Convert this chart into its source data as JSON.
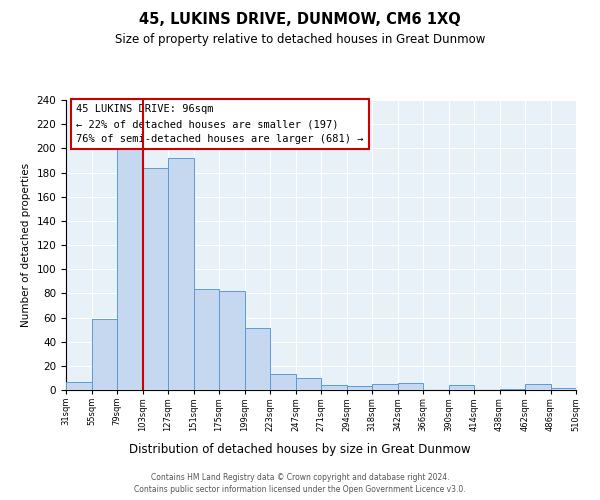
{
  "title": "45, LUKINS DRIVE, DUNMOW, CM6 1XQ",
  "subtitle": "Size of property relative to detached houses in Great Dunmow",
  "xlabel": "Distribution of detached houses by size in Great Dunmow",
  "ylabel": "Number of detached properties",
  "bar_values": [
    7,
    59,
    201,
    184,
    192,
    84,
    82,
    51,
    13,
    10,
    4,
    3,
    5,
    6,
    0,
    4,
    0,
    1,
    5,
    2
  ],
  "bin_labels": [
    "31sqm",
    "55sqm",
    "79sqm",
    "103sqm",
    "127sqm",
    "151sqm",
    "175sqm",
    "199sqm",
    "223sqm",
    "247sqm",
    "271sqm",
    "294sqm",
    "318sqm",
    "342sqm",
    "366sqm",
    "390sqm",
    "414sqm",
    "438sqm",
    "462sqm",
    "486sqm",
    "510sqm"
  ],
  "bar_color": "#c5d8ef",
  "bar_edge_color": "#5b9bd5",
  "vline_x": 3,
  "vline_color": "#cc0000",
  "annotation_title": "45 LUKINS DRIVE: 96sqm",
  "annotation_line1": "← 22% of detached houses are smaller (197)",
  "annotation_line2": "76% of semi-detached houses are larger (681) →",
  "annotation_box_color": "#cc0000",
  "ylim": [
    0,
    240
  ],
  "yticks": [
    0,
    20,
    40,
    60,
    80,
    100,
    120,
    140,
    160,
    180,
    200,
    220,
    240
  ],
  "footer1": "Contains HM Land Registry data © Crown copyright and database right 2024.",
  "footer2": "Contains public sector information licensed under the Open Government Licence v3.0.",
  "background_color": "#e8f0f8",
  "fig_background": "#ffffff",
  "grid_color": "#ffffff"
}
